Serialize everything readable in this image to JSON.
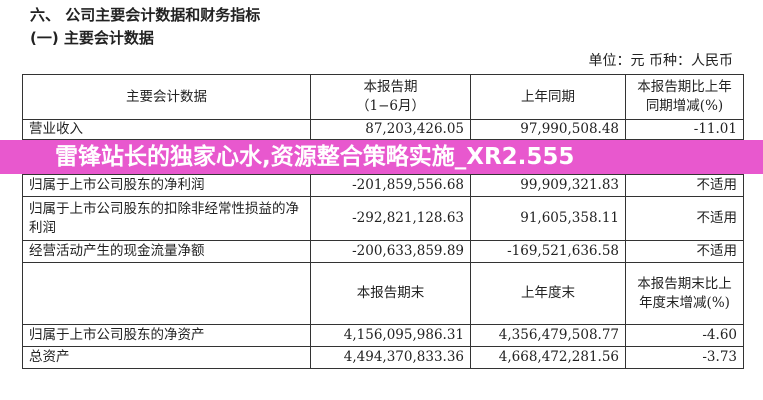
{
  "heading": "六、  公司主要会计数据和财务指标",
  "subheading": "(一) 主要会计数据",
  "unit_line": "单位：元   币种：人民币",
  "table1": {
    "headers": [
      "主要会计数据",
      "本报告期\n（1−6月）",
      "上年同期",
      "本报告期比上年同期增减(%)"
    ],
    "rows": [
      [
        "营业收入",
        "87,203,426.05",
        "97,990,508.48",
        "-11.01"
      ],
      [
        "归属于上市公司股东的净利润",
        "-201,859,556.68",
        "99,909,321.83",
        "不适用"
      ],
      [
        "归属于上市公司股东的扣除非经常性损益的净利润",
        "-292,821,128.63",
        "91,605,358.11",
        "不适用"
      ],
      [
        "经营活动产生的现金流量净额",
        "-200,633,859.89",
        "-169,521,636.58",
        "不适用"
      ]
    ]
  },
  "table2": {
    "headers": [
      "",
      "本报告期末",
      "上年度末",
      "本报告期末比上年度末增减(%)"
    ],
    "rows": [
      [
        "归属于上市公司股东的净资产",
        "4,156,095,986.31",
        "4,356,479,508.77",
        "-4.60"
      ],
      [
        "总资产",
        "4,494,370,833.36",
        "4,668,472,281.56",
        "-3.73"
      ]
    ]
  },
  "banner": {
    "text": "雷锋站长的独家心水,资源整合策略实施_XR2.555",
    "color": "#e858ce"
  }
}
